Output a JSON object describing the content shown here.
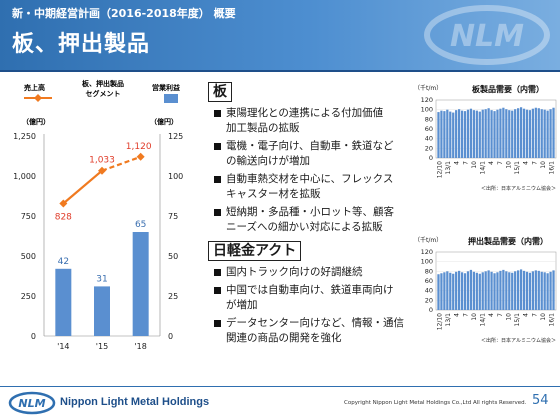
{
  "header": {
    "breadcrumb": "新・中期経営計画（2016-2018年度） 概要",
    "title": "板、押出製品"
  },
  "left_chart": {
    "legend_sales": "売上高",
    "legend_segment_line1": "板、押出製品",
    "legend_segment_line2": "セグメント",
    "legend_profit": "営業利益",
    "left_unit": "（億円）",
    "right_unit": "（億円）",
    "left_ticks": [
      "1,250",
      "1,000",
      "750",
      "500",
      "250",
      "0"
    ],
    "right_ticks": [
      "125",
      "100",
      "75",
      "50",
      "25",
      "0"
    ],
    "categories": [
      "'14",
      "'15",
      "'18"
    ],
    "sales": [
      "828",
      "1,033",
      "1,120"
    ],
    "profit": [
      "42",
      "31",
      "65"
    ],
    "colors": {
      "sales_line": "#f07a20",
      "sales_label": "#e03c2a",
      "profit_bar": "#5a8fd0",
      "profit_label": "#3a6fb0"
    }
  },
  "chart_data": [
    {
      "type": "bar",
      "subtype": "bar+line",
      "categories": [
        "'14",
        "'15",
        "'18"
      ],
      "series": [
        {
          "name": "売上高",
          "axis": "left",
          "render": "line",
          "values": [
            828,
            1033,
            1120
          ],
          "dashed_last_segment": true
        },
        {
          "name": "営業利益",
          "axis": "right",
          "render": "bar",
          "values": [
            42,
            31,
            65
          ]
        }
      ],
      "ylim_left": [
        0,
        1250
      ],
      "ylim_right": [
        0,
        125
      ],
      "ylabel_left": "（億円）",
      "ylabel_right": "（億円）",
      "title": "",
      "legend": "top"
    },
    {
      "type": "bar",
      "title": "板製品需要（内需）",
      "ylabel": "（千t/m）",
      "ylim": [
        0,
        120
      ],
      "yticks": [
        0,
        20,
        40,
        60,
        80,
        100,
        120
      ],
      "xtick_labels": [
        "12/10",
        "13/1",
        "4",
        "7",
        "10",
        "14/1",
        "4",
        "7",
        "10",
        "15/1",
        "4",
        "7",
        "10",
        "16/1"
      ],
      "note": "＜出所：日本アルミニウム協会＞",
      "values": [
        95,
        98,
        97,
        100,
        96,
        94,
        99,
        101,
        98,
        97,
        100,
        102,
        99,
        98,
        96,
        100,
        101,
        103,
        99,
        97,
        100,
        102,
        104,
        101,
        99,
        98,
        101,
        103,
        105,
        102,
        100,
        99,
        102,
        104,
        103,
        101,
        100,
        98,
        101,
        104
      ]
    },
    {
      "type": "bar",
      "title": "押出製品需要（内需）",
      "ylabel": "（千t/m）",
      "ylim": [
        0,
        120
      ],
      "yticks": [
        0,
        20,
        40,
        60,
        80,
        100,
        120
      ],
      "xtick_labels": [
        "12/10",
        "13/1",
        "4",
        "7",
        "10",
        "14/1",
        "4",
        "7",
        "10",
        "15/1",
        "4",
        "7",
        "10",
        "16/1"
      ],
      "note": "＜出所：日本アルミニウム協会＞",
      "values": [
        74,
        76,
        78,
        80,
        77,
        75,
        79,
        81,
        78,
        76,
        80,
        83,
        79,
        77,
        75,
        78,
        80,
        82,
        79,
        76,
        78,
        81,
        83,
        80,
        78,
        77,
        80,
        82,
        84,
        81,
        79,
        77,
        80,
        82,
        81,
        79,
        78,
        76,
        79,
        82
      ]
    }
  ],
  "sections": {
    "plate": {
      "heading": "板",
      "bullets": [
        [
          "東陽理化との連携による付加価値",
          "加工製品の拡販"
        ],
        [
          "電機・電子向け、自動車・鉄道など",
          "の輸送向けが増加"
        ],
        [
          "自動車熱交材を中心に、フレックス",
          "キャスター材を拡販"
        ],
        [
          "短納期・多品種・小ロット等、顧客",
          "ニーズへの細かい対応による拡販"
        ]
      ]
    },
    "nlm_act": {
      "heading": "日軽金アクト",
      "bullets": [
        [
          "国内トラック向けの好調継続"
        ],
        [
          "中国では自動車向け、鉄道車両向け",
          "が増加"
        ],
        [
          "データセンター向けなど、情報・通信",
          "関連の商品の開発を強化"
        ]
      ]
    }
  },
  "footer": {
    "company": "Nippon Light Metal Holdings",
    "copyright": "Copyright Nippon Light Metal Holdings Co.,Ltd All rights Reserved.",
    "page_number": "54"
  }
}
